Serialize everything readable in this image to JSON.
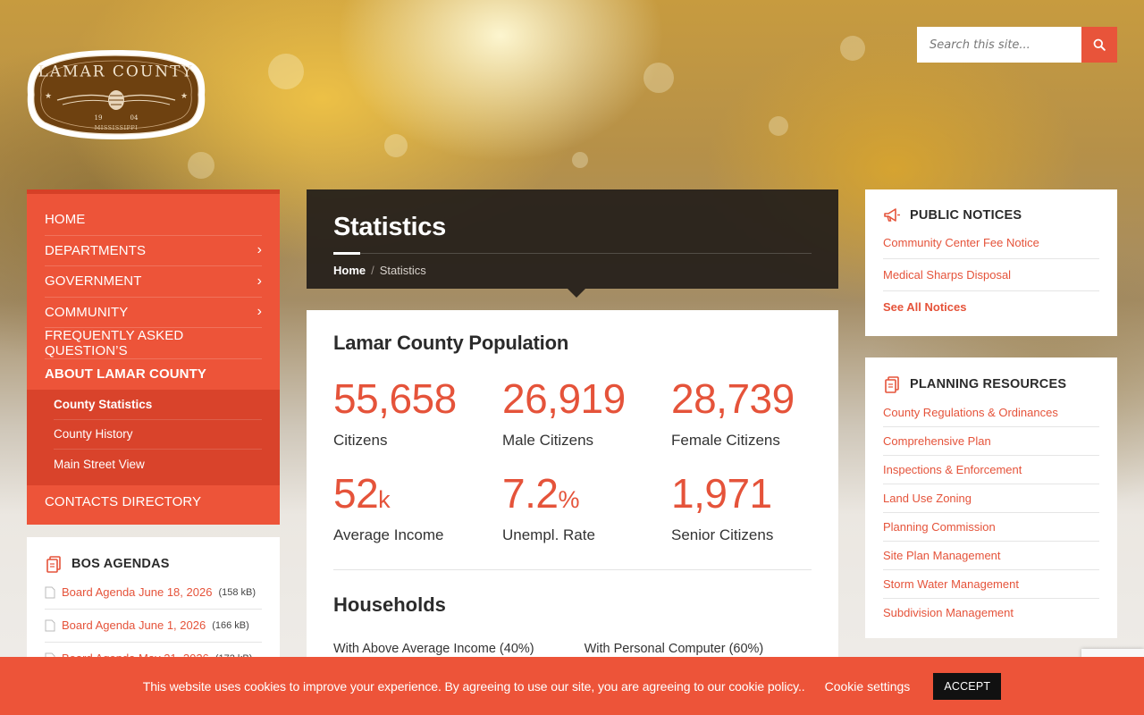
{
  "search": {
    "placeholder": "Search this site..."
  },
  "logo": {
    "line1": "LAMAR COUNTY",
    "year_left": "19",
    "year_right": "04",
    "state": "MISSISSIPPI"
  },
  "nav": {
    "items": [
      {
        "label": "HOME"
      },
      {
        "label": "DEPARTMENTS"
      },
      {
        "label": "GOVERNMENT"
      },
      {
        "label": "COMMUNITY"
      },
      {
        "label": "FREQUENTLY ASKED QUESTION’S"
      },
      {
        "label": "ABOUT LAMAR COUNTY"
      },
      {
        "label": "CONTACTS DIRECTORY"
      }
    ],
    "sub": [
      {
        "label": "County Statistics"
      },
      {
        "label": "County History"
      },
      {
        "label": "Main Street View"
      }
    ]
  },
  "bos": {
    "title": "BOS AGENDAS",
    "files": [
      {
        "name": "Board Agenda June 18, 2026",
        "size": "(158 kB)"
      },
      {
        "name": "Board Agenda June 1, 2026",
        "size": "(166 kB)"
      },
      {
        "name": "Board Agenda May 21, 2026",
        "size": "(172 kB)"
      }
    ]
  },
  "header": {
    "title": "Statistics",
    "crumb_home": "Home",
    "crumb_sep": "/",
    "crumb_current": "Statistics"
  },
  "main": {
    "population_title": "Lamar County Population",
    "stats": [
      {
        "value": "55,658",
        "unit": "",
        "label": "Citizens"
      },
      {
        "value": "26,919",
        "unit": "",
        "label": "Male Citizens"
      },
      {
        "value": "28,739",
        "unit": "",
        "label": "Female Citizens"
      },
      {
        "value": "52",
        "unit": "k",
        "label": "Average Income"
      },
      {
        "value": "7.2",
        "unit": "%",
        "label": "Unempl. Rate"
      },
      {
        "value": "1,971",
        "unit": "",
        "label": "Senior Citizens"
      }
    ],
    "households_title": "Households",
    "households": [
      {
        "label": "With Above Average Income (40%)"
      },
      {
        "label": "With Personal Computer (60%)"
      }
    ]
  },
  "notices": {
    "title": "PUBLIC NOTICES",
    "links": [
      {
        "label": "Community Center Fee Notice"
      },
      {
        "label": "Medical Sharps Disposal"
      },
      {
        "label": "See All Notices"
      }
    ]
  },
  "planning": {
    "title": "PLANNING RESOURCES",
    "links": [
      {
        "label": "County Regulations & Ordinances"
      },
      {
        "label": "Comprehensive Plan"
      },
      {
        "label": "Inspections & Enforcement"
      },
      {
        "label": "Land Use Zoning"
      },
      {
        "label": "Planning Commission"
      },
      {
        "label": "Site Plan Management"
      },
      {
        "label": "Storm Water Management"
      },
      {
        "label": "Subdivision Management"
      }
    ]
  },
  "cookie": {
    "message": "This website uses cookies to improve your experience. By agreeing to use our site, you are agreeing to our cookie policy..",
    "settings": "Cookie settings",
    "accept": "ACCEPT"
  },
  "colors": {
    "accent": "#ed5439",
    "accent_dark": "#d64027",
    "header_bg": "#241e1a"
  }
}
